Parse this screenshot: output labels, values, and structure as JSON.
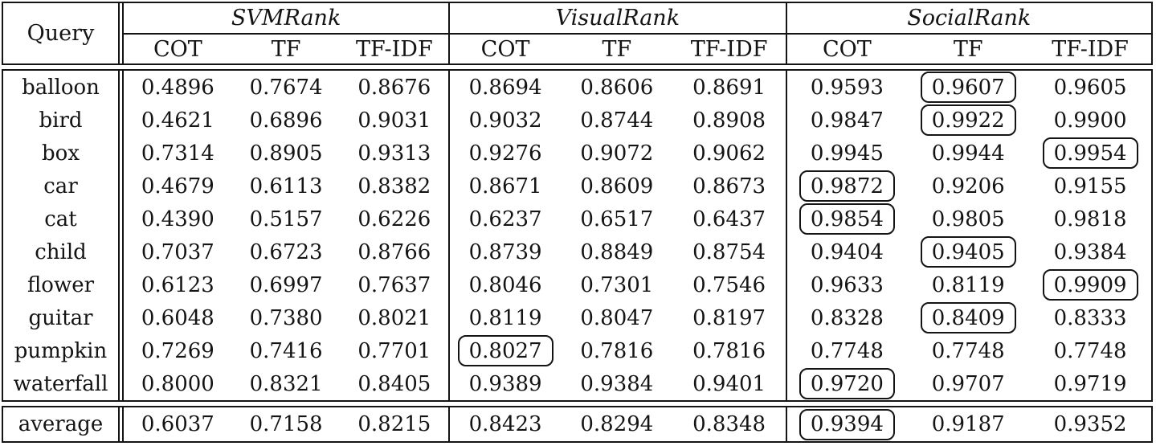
{
  "table": {
    "query_header": "Query",
    "groups": [
      {
        "label": "SVMRank",
        "columns": [
          "COT",
          "TF",
          "TF-IDF"
        ]
      },
      {
        "label": "VisualRank",
        "columns": [
          "COT",
          "TF",
          "TF-IDF"
        ]
      },
      {
        "label": "SocialRank",
        "columns": [
          "COT",
          "TF",
          "TF-IDF"
        ]
      }
    ],
    "rows": [
      {
        "query": "balloon",
        "values": [
          "0.4896",
          "0.7674",
          "0.8676",
          "0.8694",
          "0.8606",
          "0.8691",
          "0.9593",
          "0.9607",
          "0.9605"
        ],
        "boxed": [
          7
        ]
      },
      {
        "query": "bird",
        "values": [
          "0.4621",
          "0.6896",
          "0.9031",
          "0.9032",
          "0.8744",
          "0.8908",
          "0.9847",
          "0.9922",
          "0.9900"
        ],
        "boxed": [
          7
        ]
      },
      {
        "query": "box",
        "values": [
          "0.7314",
          "0.8905",
          "0.9313",
          "0.9276",
          "0.9072",
          "0.9062",
          "0.9945",
          "0.9944",
          "0.9954"
        ],
        "boxed": [
          8
        ]
      },
      {
        "query": "car",
        "values": [
          "0.4679",
          "0.6113",
          "0.8382",
          "0.8671",
          "0.8609",
          "0.8673",
          "0.9872",
          "0.9206",
          "0.9155"
        ],
        "boxed": [
          6
        ]
      },
      {
        "query": "cat",
        "values": [
          "0.4390",
          "0.5157",
          "0.6226",
          "0.6237",
          "0.6517",
          "0.6437",
          "0.9854",
          "0.9805",
          "0.9818"
        ],
        "boxed": [
          6
        ]
      },
      {
        "query": "child",
        "values": [
          "0.7037",
          "0.6723",
          "0.8766",
          "0.8739",
          "0.8849",
          "0.8754",
          "0.9404",
          "0.9405",
          "0.9384"
        ],
        "boxed": [
          7
        ]
      },
      {
        "query": "flower",
        "values": [
          "0.6123",
          "0.6997",
          "0.7637",
          "0.8046",
          "0.7301",
          "0.7546",
          "0.9633",
          "0.8119",
          "0.9909"
        ],
        "boxed": [
          8
        ]
      },
      {
        "query": "guitar",
        "values": [
          "0.6048",
          "0.7380",
          "0.8021",
          "0.8119",
          "0.8047",
          "0.8197",
          "0.8328",
          "0.8409",
          "0.8333"
        ],
        "boxed": [
          7
        ]
      },
      {
        "query": "pumpkin",
        "values": [
          "0.7269",
          "0.7416",
          "0.7701",
          "0.8027",
          "0.7816",
          "0.7816",
          "0.7748",
          "0.7748",
          "0.7748"
        ],
        "boxed": [
          3
        ]
      },
      {
        "query": "waterfall",
        "values": [
          "0.8000",
          "0.8321",
          "0.8405",
          "0.9389",
          "0.9384",
          "0.9401",
          "0.9720",
          "0.9707",
          "0.9719"
        ],
        "boxed": [
          6
        ]
      }
    ],
    "average_row": {
      "query": "average",
      "values": [
        "0.6037",
        "0.7158",
        "0.8215",
        "0.8423",
        "0.8294",
        "0.8348",
        "0.9394",
        "0.9187",
        "0.9352"
      ],
      "boxed": [
        6
      ]
    }
  }
}
